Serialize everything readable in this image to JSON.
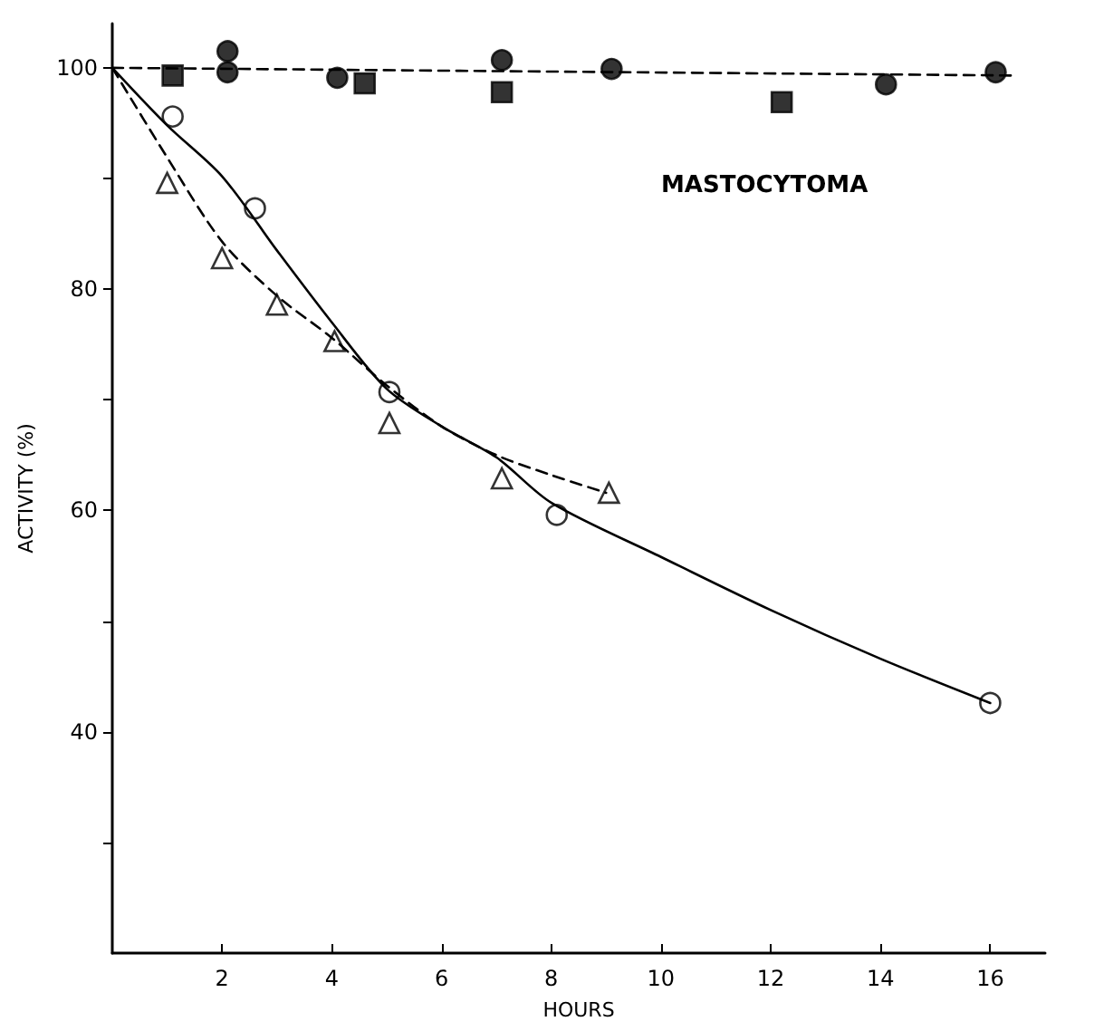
{
  "chart_data": {
    "type": "scatter",
    "xlabel": "HOURS",
    "ylabel": "ACTIVITY (%)",
    "annotations": [
      "MASTOCYTOMA"
    ],
    "xlim": [
      0,
      17
    ],
    "xticks": [
      2,
      4,
      6,
      8,
      10,
      12,
      14,
      16
    ],
    "ylim": [
      20,
      104
    ],
    "yticks": [
      {
        "value": 30,
        "label": null
      },
      40,
      {
        "value": 50,
        "label": null
      },
      60,
      {
        "value": 70,
        "label": null
      },
      80,
      {
        "value": 90,
        "label": null
      },
      100
    ],
    "grid": false,
    "series": [
      {
        "marker": "circle",
        "color": "#000000",
        "x": [
          2.1,
          2.1,
          4.1,
          7.1,
          9.1,
          14.1,
          16.1
        ],
        "values": [
          101.5,
          99.6,
          99.1,
          100.7,
          99.9,
          98.5,
          99.6
        ]
      },
      {
        "marker": "square",
        "color": "#000000",
        "x": [
          1.1,
          4.6,
          7.1,
          12.2
        ],
        "values": [
          99.3,
          98.6,
          97.8,
          96.9
        ]
      },
      {
        "marker": "circle",
        "color": "#ffffff",
        "x": [
          1.1,
          2.6,
          5.05,
          8.1,
          16
        ],
        "values": [
          95.6,
          87.3,
          70.7,
          59.6,
          42.6
        ]
      },
      {
        "marker": "triangle",
        "color": "#ffffff",
        "x": [
          1,
          2,
          3,
          4.05,
          5.05,
          7.1,
          9.05
        ],
        "values": [
          89.6,
          82.8,
          78.6,
          75.3,
          67.9,
          62.9,
          61.6
        ]
      },
      {
        "type": "line",
        "marker": "none",
        "line_style": "dashed",
        "color": "#000000",
        "x": [
          0,
          16.5
        ],
        "values": [
          100,
          99.3
        ]
      },
      {
        "type": "line",
        "marker": "none",
        "line_style": "solid",
        "color": "#000000",
        "x": [
          0,
          1,
          2,
          3,
          4,
          5,
          6,
          7,
          8,
          10,
          12,
          14,
          16
        ],
        "values": [
          100,
          94.8,
          90.2,
          83.5,
          77,
          71,
          67.6,
          64.8,
          60.7,
          55.8,
          51,
          46.6,
          42.6
        ]
      },
      {
        "type": "line",
        "marker": "none",
        "line_style": "dashed",
        "color": "#000000",
        "x": [
          0,
          1,
          2,
          3,
          4,
          5,
          6,
          7,
          8,
          9
        ],
        "values": [
          100,
          91.9,
          84.3,
          79.4,
          75.6,
          71.3,
          67.6,
          65,
          63.2,
          61.6
        ]
      }
    ]
  }
}
